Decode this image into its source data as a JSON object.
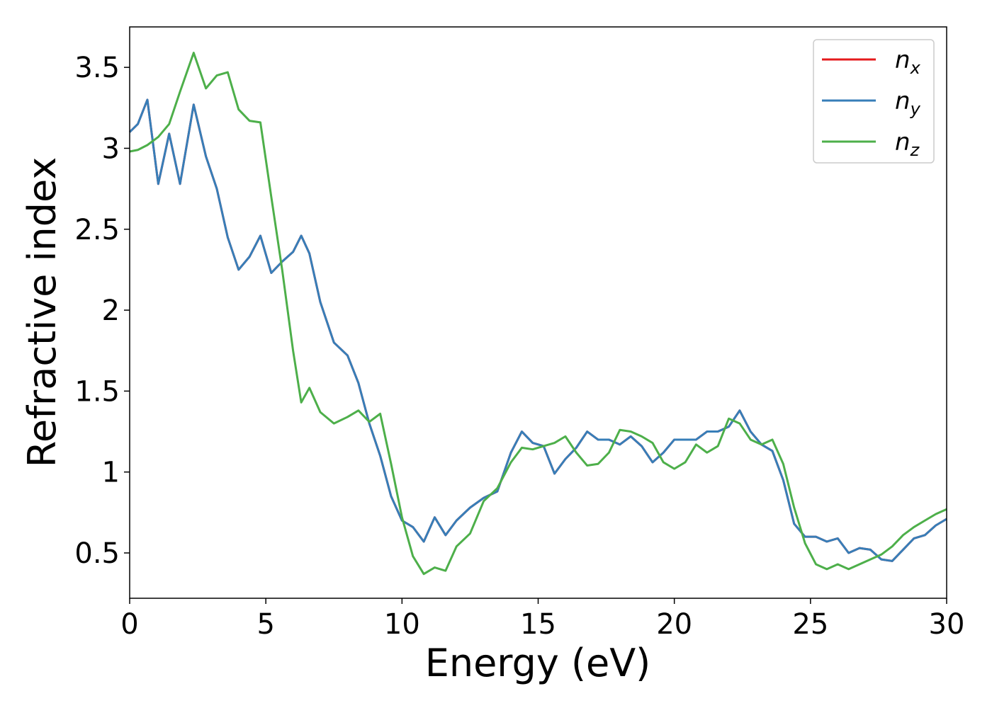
{
  "chart_data": {
    "type": "line",
    "xlabel": "Energy (eV)",
    "ylabel": "Refractive index",
    "x": [
      0,
      0.3,
      0.65,
      1.05,
      1.45,
      1.85,
      2.35,
      2.8,
      3.2,
      3.6,
      4.0,
      4.4,
      4.8,
      5.2,
      5.6,
      6.0,
      6.3,
      6.6,
      7.0,
      7.5,
      8.0,
      8.4,
      8.8,
      9.2,
      9.6,
      10.0,
      10.4,
      10.8,
      11.2,
      11.6,
      12.0,
      12.5,
      13.0,
      13.5,
      14.0,
      14.4,
      14.8,
      15.2,
      15.6,
      16.0,
      16.4,
      16.8,
      17.2,
      17.6,
      18.0,
      18.4,
      18.8,
      19.2,
      19.6,
      20.0,
      20.4,
      20.8,
      21.2,
      21.6,
      22.0,
      22.4,
      22.8,
      23.2,
      23.6,
      24.0,
      24.4,
      24.8,
      25.2,
      25.6,
      26.0,
      26.4,
      26.8,
      27.2,
      27.6,
      28.0,
      28.4,
      28.8,
      29.2,
      29.6,
      30.0
    ],
    "series": [
      {
        "name": "nx",
        "color": "#e41a1c",
        "values": [
          3.1,
          3.15,
          3.3,
          2.78,
          3.09,
          2.78,
          3.27,
          2.95,
          2.75,
          2.45,
          2.25,
          2.33,
          2.46,
          2.23,
          2.3,
          2.36,
          2.46,
          2.35,
          2.05,
          1.8,
          1.72,
          1.55,
          1.3,
          1.1,
          0.85,
          0.7,
          0.66,
          0.57,
          0.72,
          0.61,
          0.7,
          0.78,
          0.84,
          0.88,
          1.12,
          1.25,
          1.18,
          1.16,
          0.99,
          1.08,
          1.15,
          1.25,
          1.2,
          1.2,
          1.17,
          1.22,
          1.16,
          1.06,
          1.12,
          1.2,
          1.2,
          1.2,
          1.25,
          1.25,
          1.28,
          1.38,
          1.25,
          1.17,
          1.13,
          0.95,
          0.68,
          0.6,
          0.6,
          0.57,
          0.59,
          0.5,
          0.53,
          0.52,
          0.46,
          0.45,
          0.52,
          0.59,
          0.61,
          0.67,
          0.71
        ]
      },
      {
        "name": "ny",
        "color": "#377eb8",
        "values": [
          3.1,
          3.15,
          3.3,
          2.78,
          3.09,
          2.78,
          3.27,
          2.95,
          2.75,
          2.45,
          2.25,
          2.33,
          2.46,
          2.23,
          2.3,
          2.36,
          2.46,
          2.35,
          2.05,
          1.8,
          1.72,
          1.55,
          1.3,
          1.1,
          0.85,
          0.7,
          0.66,
          0.57,
          0.72,
          0.61,
          0.7,
          0.78,
          0.84,
          0.88,
          1.12,
          1.25,
          1.18,
          1.16,
          0.99,
          1.08,
          1.15,
          1.25,
          1.2,
          1.2,
          1.17,
          1.22,
          1.16,
          1.06,
          1.12,
          1.2,
          1.2,
          1.2,
          1.25,
          1.25,
          1.28,
          1.38,
          1.25,
          1.17,
          1.13,
          0.95,
          0.68,
          0.6,
          0.6,
          0.57,
          0.59,
          0.5,
          0.53,
          0.52,
          0.46,
          0.45,
          0.52,
          0.59,
          0.61,
          0.67,
          0.71
        ]
      },
      {
        "name": "nz",
        "color": "#4daf4a",
        "values": [
          2.98,
          2.99,
          3.02,
          3.07,
          3.15,
          3.35,
          3.59,
          3.37,
          3.45,
          3.47,
          3.24,
          3.17,
          3.16,
          2.7,
          2.25,
          1.75,
          1.43,
          1.52,
          1.37,
          1.3,
          1.34,
          1.38,
          1.31,
          1.36,
          1.05,
          0.72,
          0.48,
          0.37,
          0.41,
          0.39,
          0.54,
          0.62,
          0.82,
          0.9,
          1.06,
          1.15,
          1.14,
          1.16,
          1.18,
          1.22,
          1.12,
          1.04,
          1.05,
          1.12,
          1.26,
          1.25,
          1.22,
          1.18,
          1.06,
          1.02,
          1.06,
          1.17,
          1.12,
          1.16,
          1.33,
          1.3,
          1.2,
          1.17,
          1.2,
          1.05,
          0.78,
          0.56,
          0.43,
          0.4,
          0.43,
          0.4,
          0.43,
          0.46,
          0.49,
          0.54,
          0.61,
          0.66,
          0.7,
          0.74,
          0.77
        ]
      }
    ],
    "xlim": [
      0,
      30
    ],
    "xticks": [
      0,
      5,
      10,
      15,
      20,
      25,
      30
    ],
    "ylim": [
      0.22,
      3.75
    ],
    "yticks": [
      0.5,
      1.0,
      1.5,
      2.0,
      2.5,
      3.0,
      3.5
    ],
    "legend": "upper right",
    "grid": false
  }
}
